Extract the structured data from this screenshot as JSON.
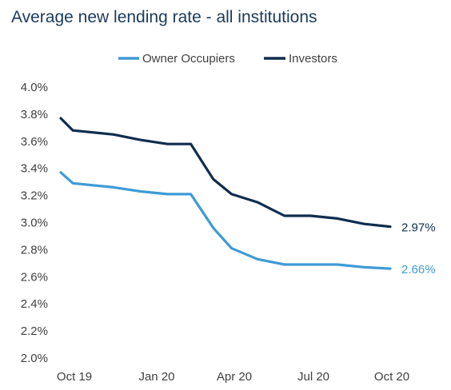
{
  "chart_data": {
    "type": "line",
    "title": "Average new lending rate - all institutions",
    "xlabel": "",
    "ylabel": "",
    "x": [
      "2019-10",
      "2019-11",
      "2019-12",
      "2020-01",
      "2020-02",
      "2020-03",
      "2020-04",
      "2020-05",
      "2020-06",
      "2020-07",
      "2020-08",
      "2020-09",
      "2020-10"
    ],
    "x_tick_labels": [
      "Oct 19",
      "Jan 20",
      "Apr 20",
      "Jul 20",
      "Oct 20"
    ],
    "x_tick_positions": [
      "2019-10",
      "2020-01",
      "2020-04",
      "2020-07",
      "2020-10"
    ],
    "y_tick_labels": [
      "4.0%",
      "3.8%",
      "3.6%",
      "3.4%",
      "3.2%",
      "3.0%",
      "2.8%",
      "2.6%",
      "2.4%",
      "2.2%",
      "2.0%"
    ],
    "y_ticks": [
      4.0,
      3.8,
      3.6,
      3.4,
      3.2,
      3.0,
      2.8,
      2.6,
      2.4,
      2.2,
      2.0
    ],
    "ylim": [
      2.0,
      4.0
    ],
    "grid": false,
    "legend_position": "top-center",
    "series": [
      {
        "name": "Owner Occupiers",
        "color": "#3d9bd6",
        "x": [
          "2019-10-01",
          "2019-10-15",
          "2019-12-01",
          "2020-01-01",
          "2020-02-01",
          "2020-02-28",
          "2020-03-25",
          "2020-04-15",
          "2020-05-15",
          "2020-06-15",
          "2020-07-15",
          "2020-08-15",
          "2020-09-15",
          "2020-10-15"
        ],
        "values": [
          3.37,
          3.29,
          3.26,
          3.23,
          3.21,
          3.21,
          2.96,
          2.81,
          2.73,
          2.69,
          2.69,
          2.69,
          2.67,
          2.66
        ],
        "end_label": "2.66%"
      },
      {
        "name": "Investors",
        "color": "#0f2d4e",
        "x": [
          "2019-10-01",
          "2019-10-15",
          "2019-12-01",
          "2020-01-01",
          "2020-02-01",
          "2020-02-28",
          "2020-03-25",
          "2020-04-15",
          "2020-05-15",
          "2020-06-15",
          "2020-07-15",
          "2020-08-15",
          "2020-09-15",
          "2020-10-15"
        ],
        "values": [
          3.77,
          3.68,
          3.65,
          3.61,
          3.58,
          3.58,
          3.32,
          3.21,
          3.15,
          3.05,
          3.05,
          3.03,
          2.99,
          2.97
        ],
        "end_label": "2.97%"
      }
    ]
  }
}
